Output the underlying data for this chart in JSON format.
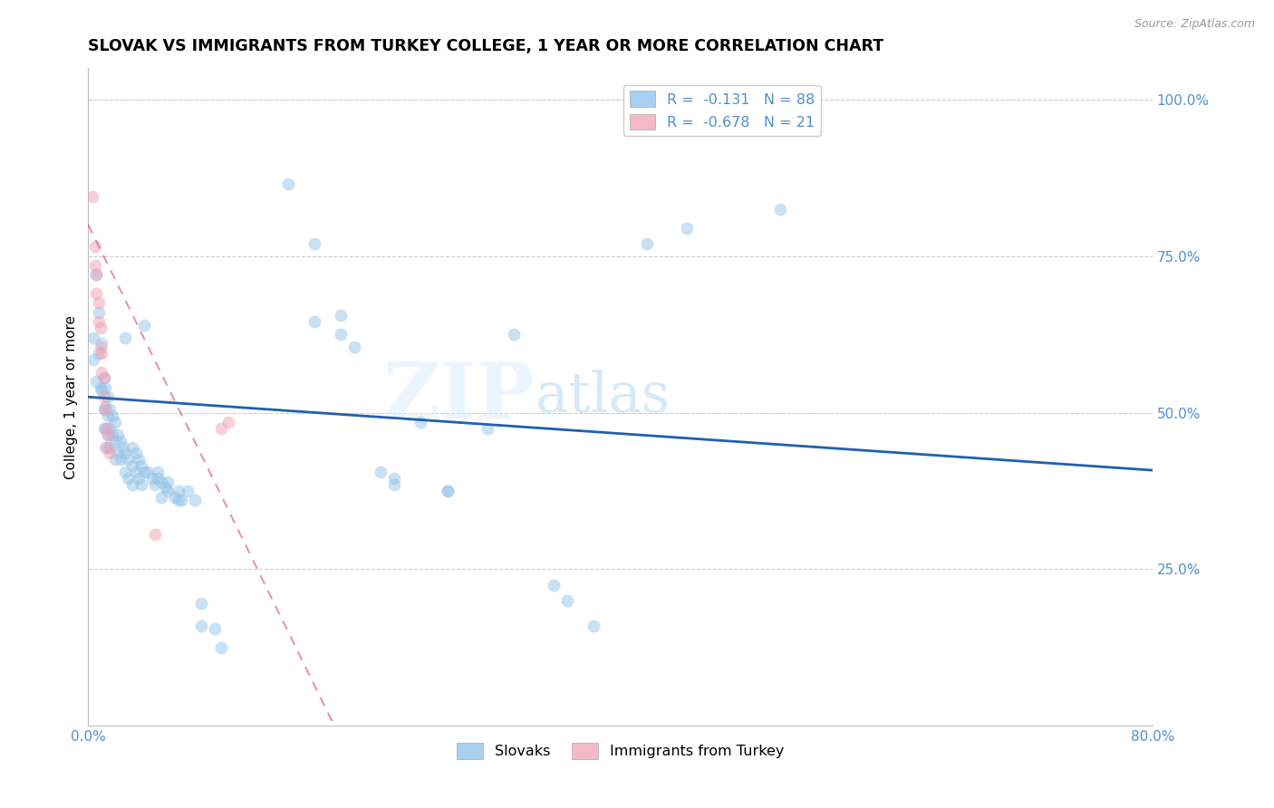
{
  "title": "SLOVAK VS IMMIGRANTS FROM TURKEY COLLEGE, 1 YEAR OR MORE CORRELATION CHART",
  "source": "Source: ZipAtlas.com",
  "ylabel": "College, 1 year or more",
  "right_yticks": [
    "100.0%",
    "75.0%",
    "50.0%",
    "25.0%"
  ],
  "right_ytick_vals": [
    1.0,
    0.75,
    0.5,
    0.25
  ],
  "xlim": [
    0.0,
    0.8
  ],
  "ylim": [
    0.0,
    1.05
  ],
  "watermark_zip": "ZIP",
  "watermark_atlas": "atlas",
  "legend_top": [
    {
      "label": "R =  -0.131   N = 88",
      "color": "#a8d0f0"
    },
    {
      "label": "R =  -0.678   N = 21",
      "color": "#f5b8c8"
    }
  ],
  "legend_labels_bottom": [
    "Slovaks",
    "Immigrants from Turkey"
  ],
  "legend_colors_bottom": [
    "#a8d0f0",
    "#f5b8c8"
  ],
  "blue_line": {
    "x0": 0.0,
    "y0": 0.525,
    "x1": 0.8,
    "y1": 0.408
  },
  "pink_line": {
    "x0": 0.0,
    "y0": 0.8,
    "x1": 0.185,
    "y1": 0.0
  },
  "blue_dots": [
    [
      0.004,
      0.62
    ],
    [
      0.004,
      0.585
    ],
    [
      0.006,
      0.72
    ],
    [
      0.006,
      0.55
    ],
    [
      0.008,
      0.66
    ],
    [
      0.008,
      0.595
    ],
    [
      0.009,
      0.54
    ],
    [
      0.01,
      0.61
    ],
    [
      0.01,
      0.535
    ],
    [
      0.012,
      0.555
    ],
    [
      0.012,
      0.505
    ],
    [
      0.012,
      0.475
    ],
    [
      0.013,
      0.54
    ],
    [
      0.013,
      0.51
    ],
    [
      0.013,
      0.475
    ],
    [
      0.013,
      0.445
    ],
    [
      0.015,
      0.525
    ],
    [
      0.015,
      0.495
    ],
    [
      0.015,
      0.465
    ],
    [
      0.016,
      0.505
    ],
    [
      0.016,
      0.475
    ],
    [
      0.016,
      0.445
    ],
    [
      0.018,
      0.495
    ],
    [
      0.018,
      0.465
    ],
    [
      0.02,
      0.485
    ],
    [
      0.02,
      0.455
    ],
    [
      0.02,
      0.425
    ],
    [
      0.022,
      0.465
    ],
    [
      0.022,
      0.435
    ],
    [
      0.024,
      0.455
    ],
    [
      0.024,
      0.425
    ],
    [
      0.026,
      0.445
    ],
    [
      0.028,
      0.62
    ],
    [
      0.028,
      0.435
    ],
    [
      0.028,
      0.405
    ],
    [
      0.03,
      0.425
    ],
    [
      0.03,
      0.395
    ],
    [
      0.033,
      0.445
    ],
    [
      0.033,
      0.415
    ],
    [
      0.033,
      0.385
    ],
    [
      0.036,
      0.435
    ],
    [
      0.036,
      0.405
    ],
    [
      0.038,
      0.425
    ],
    [
      0.038,
      0.395
    ],
    [
      0.04,
      0.415
    ],
    [
      0.04,
      0.385
    ],
    [
      0.042,
      0.64
    ],
    [
      0.042,
      0.405
    ],
    [
      0.045,
      0.405
    ],
    [
      0.048,
      0.395
    ],
    [
      0.05,
      0.385
    ],
    [
      0.052,
      0.395
    ],
    [
      0.052,
      0.405
    ],
    [
      0.055,
      0.365
    ],
    [
      0.055,
      0.39
    ],
    [
      0.058,
      0.38
    ],
    [
      0.06,
      0.39
    ],
    [
      0.06,
      0.375
    ],
    [
      0.065,
      0.365
    ],
    [
      0.068,
      0.375
    ],
    [
      0.068,
      0.36
    ],
    [
      0.07,
      0.36
    ],
    [
      0.075,
      0.375
    ],
    [
      0.08,
      0.36
    ],
    [
      0.085,
      0.195
    ],
    [
      0.085,
      0.16
    ],
    [
      0.095,
      0.155
    ],
    [
      0.1,
      0.125
    ],
    [
      0.15,
      0.865
    ],
    [
      0.17,
      0.77
    ],
    [
      0.17,
      0.645
    ],
    [
      0.19,
      0.655
    ],
    [
      0.19,
      0.625
    ],
    [
      0.2,
      0.605
    ],
    [
      0.22,
      0.405
    ],
    [
      0.23,
      0.395
    ],
    [
      0.23,
      0.385
    ],
    [
      0.25,
      0.485
    ],
    [
      0.27,
      0.375
    ],
    [
      0.27,
      0.375
    ],
    [
      0.3,
      0.475
    ],
    [
      0.32,
      0.625
    ],
    [
      0.35,
      0.225
    ],
    [
      0.36,
      0.2
    ],
    [
      0.38,
      0.16
    ],
    [
      0.42,
      0.77
    ],
    [
      0.45,
      0.795
    ],
    [
      0.52,
      0.825
    ]
  ],
  "pink_dots": [
    [
      0.003,
      0.845
    ],
    [
      0.005,
      0.765
    ],
    [
      0.005,
      0.735
    ],
    [
      0.006,
      0.72
    ],
    [
      0.006,
      0.69
    ],
    [
      0.008,
      0.675
    ],
    [
      0.008,
      0.645
    ],
    [
      0.009,
      0.635
    ],
    [
      0.009,
      0.605
    ],
    [
      0.01,
      0.595
    ],
    [
      0.01,
      0.565
    ],
    [
      0.012,
      0.555
    ],
    [
      0.012,
      0.525
    ],
    [
      0.013,
      0.505
    ],
    [
      0.014,
      0.475
    ],
    [
      0.014,
      0.445
    ],
    [
      0.015,
      0.465
    ],
    [
      0.016,
      0.435
    ],
    [
      0.05,
      0.305
    ],
    [
      0.1,
      0.475
    ],
    [
      0.105,
      0.485
    ]
  ],
  "dot_size": 100,
  "dot_alpha": 0.5,
  "blue_color": "#94C4E8",
  "pink_color": "#F0A0B5",
  "line_blue_color": "#2060B0",
  "line_pink_color": "#D04060",
  "grid_color": "#cccccc",
  "title_fontsize": 12.5,
  "axis_color": "#5090d0",
  "tick_fontsize": 11
}
